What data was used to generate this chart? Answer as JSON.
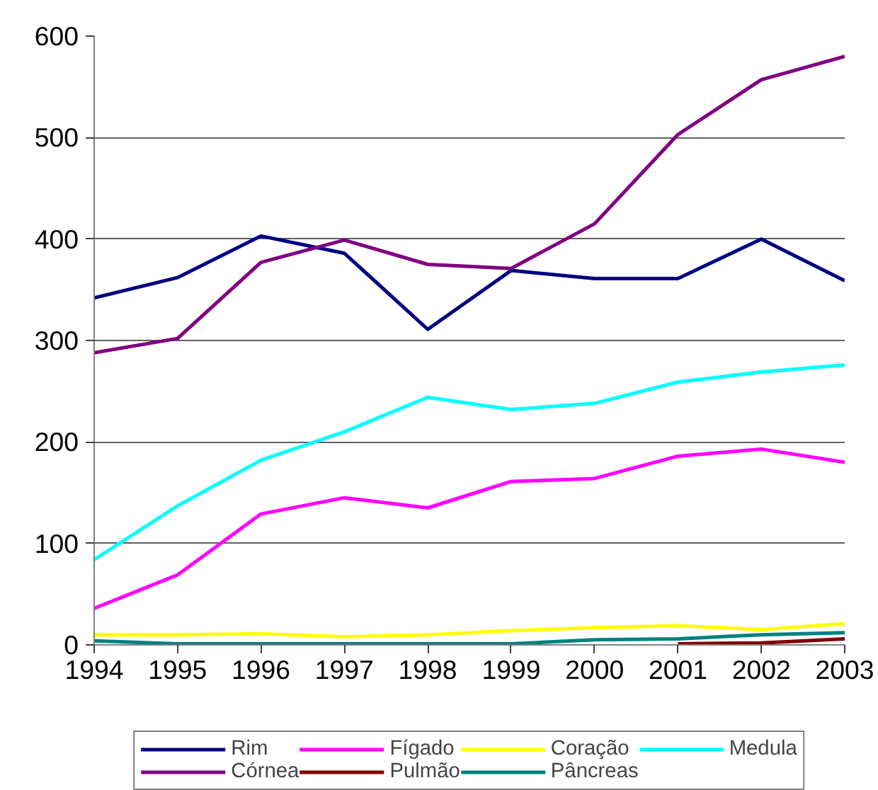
{
  "chart_data": {
    "type": "line",
    "x": [
      1994,
      1995,
      1996,
      1997,
      1998,
      1999,
      2000,
      2001,
      2002,
      2003
    ],
    "xlim": [
      1994,
      2003
    ],
    "xticks": [
      1994,
      1995,
      1996,
      1997,
      1998,
      1999,
      2000,
      2001,
      2002,
      2003
    ],
    "ylim": [
      0,
      600
    ],
    "yticks": [
      0,
      100,
      200,
      300,
      400,
      500,
      600
    ],
    "grid": "y",
    "legend": "bottom",
    "marker": "none",
    "line_style": "solid",
    "series": [
      {
        "name": "Rim",
        "color": "#000080",
        "values": [
          342,
          362,
          403,
          386,
          311,
          369,
          361,
          361,
          400,
          359
        ]
      },
      {
        "name": "Fígado",
        "color": "#ff00ff",
        "values": [
          36,
          69,
          129,
          145,
          135,
          161,
          164,
          186,
          193,
          180
        ]
      },
      {
        "name": "Coração",
        "color": "#ffff00",
        "values": [
          10,
          10,
          11,
          8,
          10,
          14,
          17,
          19,
          15,
          21
        ]
      },
      {
        "name": "Medula",
        "color": "#00ffff",
        "values": [
          84,
          137,
          182,
          210,
          244,
          232,
          238,
          259,
          269,
          276
        ]
      },
      {
        "name": "Córnea",
        "color": "#800080",
        "values": [
          288,
          302,
          377,
          399,
          375,
          371,
          415,
          503,
          557,
          580
        ]
      },
      {
        "name": "Pulmão",
        "color": "#800000",
        "values": [
          null,
          null,
          null,
          null,
          null,
          null,
          null,
          1,
          2,
          6
        ]
      },
      {
        "name": "Pâncreas",
        "color": "#008080",
        "values": [
          4,
          1,
          1,
          1,
          1,
          1,
          5,
          6,
          10,
          12
        ]
      }
    ]
  }
}
